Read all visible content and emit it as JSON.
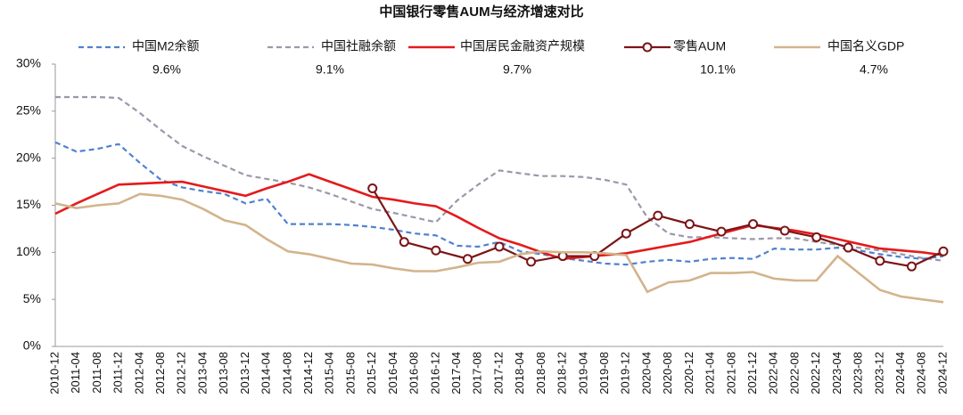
{
  "chart_data": {
    "type": "line",
    "title": "中国银行零售AUM与经济增速对比",
    "categories": [
      "2010-12",
      "2011-04",
      "2011-08",
      "2011-12",
      "2012-04",
      "2012-08",
      "2012-12",
      "2013-04",
      "2013-08",
      "2013-12",
      "2014-04",
      "2014-08",
      "2014-12",
      "2015-04",
      "2015-08",
      "2015-12",
      "2016-04",
      "2016-08",
      "2016-12",
      "2017-04",
      "2017-08",
      "2017-12",
      "2018-04",
      "2018-08",
      "2018-12",
      "2019-04",
      "2019-08",
      "2019-12",
      "2020-04",
      "2020-08",
      "2020-12",
      "2021-04",
      "2021-08",
      "2021-12",
      "2022-04",
      "2022-08",
      "2022-12",
      "2023-04",
      "2023-08",
      "2023-12",
      "2024-04",
      "2024-08",
      "2024-12"
    ],
    "ylim": [
      0,
      30
    ],
    "yticks": [
      {
        "value": 0,
        "label": "0%"
      },
      {
        "value": 5,
        "label": "5%"
      },
      {
        "value": 10,
        "label": "10%"
      },
      {
        "value": 15,
        "label": "15%"
      },
      {
        "value": 20,
        "label": "20%"
      },
      {
        "value": 25,
        "label": "25%"
      },
      {
        "value": 30,
        "label": "30%"
      }
    ],
    "series": [
      {
        "name": "中国M2余额",
        "legend_note": "9.6%",
        "color": "#4f81d0",
        "dash": true,
        "values": [
          21.7,
          20.7,
          21.0,
          21.5,
          19.5,
          17.7,
          16.9,
          16.5,
          16.2,
          15.2,
          15.7,
          13.0,
          13.0,
          13.0,
          12.9,
          12.7,
          12.4,
          12.0,
          11.8,
          10.7,
          10.6,
          11.1,
          10.1,
          9.8,
          9.4,
          9.1,
          8.8,
          8.7,
          9.0,
          9.2,
          9.0,
          9.3,
          9.4,
          9.3,
          10.4,
          10.3,
          10.3,
          10.5,
          10.2,
          9.8,
          9.5,
          9.3,
          9.6
        ]
      },
      {
        "name": "中国社融余额",
        "legend_note": "9.1%",
        "color": "#9a98aa",
        "dash": true,
        "values": [
          26.5,
          26.5,
          26.5,
          26.4,
          24.8,
          23.0,
          21.3,
          20.2,
          19.2,
          18.2,
          17.8,
          17.4,
          16.9,
          16.2,
          15.4,
          14.6,
          14.2,
          13.7,
          13.2,
          15.5,
          17.2,
          18.7,
          18.4,
          18.1,
          18.1,
          18.0,
          17.7,
          17.2,
          13.7,
          12.0,
          11.6,
          11.6,
          11.5,
          11.4,
          11.5,
          11.5,
          11.1,
          10.8,
          10.5,
          10.2,
          9.8,
          9.4,
          9.1
        ]
      },
      {
        "name": "中国居民金融资产规模",
        "legend_note": "9.7%",
        "color": "#e41a1c",
        "width": 2.6,
        "values": [
          14.1,
          15.2,
          16.2,
          17.2,
          17.3,
          17.4,
          17.5,
          17.0,
          16.5,
          16.0,
          16.8,
          17.5,
          18.3,
          17.5,
          16.7,
          15.9,
          15.6,
          15.2,
          14.9,
          13.8,
          12.6,
          11.5,
          10.8,
          10.0,
          9.3,
          9.5,
          9.7,
          9.9,
          10.3,
          10.7,
          11.1,
          11.7,
          12.3,
          12.9,
          12.6,
          12.3,
          11.9,
          11.4,
          10.9,
          10.4,
          10.2,
          10.0,
          9.7
        ]
      },
      {
        "name": "零售AUM",
        "legend_note": "10.1%",
        "color": "#7b1416",
        "markers": true,
        "x": [
          "2015-12",
          "2016-06",
          "2016-12",
          "2017-06",
          "2017-12",
          "2018-06",
          "2018-12",
          "2019-06",
          "2019-12",
          "2020-06",
          "2020-12",
          "2021-06",
          "2021-12",
          "2022-06",
          "2022-12",
          "2023-06",
          "2023-12",
          "2024-06",
          "2024-12"
        ],
        "values": [
          16.8,
          11.1,
          10.2,
          9.3,
          10.6,
          9.0,
          9.6,
          9.6,
          12.0,
          13.9,
          13.0,
          12.2,
          13.0,
          12.3,
          11.6,
          10.5,
          9.1,
          8.5,
          10.1
        ]
      },
      {
        "name": "中国名义GDP",
        "legend_note": "4.7%",
        "color": "#d2b48c",
        "width": 2.6,
        "values": [
          15.2,
          14.7,
          15.0,
          15.2,
          16.2,
          16.0,
          15.6,
          14.6,
          13.4,
          12.9,
          11.4,
          10.1,
          9.8,
          9.3,
          8.8,
          8.7,
          8.3,
          8.0,
          8.0,
          8.4,
          8.9,
          9.0,
          9.8,
          10.1,
          10.0,
          10.0,
          9.9,
          9.7,
          5.8,
          6.8,
          7.0,
          7.8,
          7.8,
          7.9,
          7.2,
          7.0,
          7.0,
          9.6,
          7.8,
          6.0,
          5.3,
          5.0,
          4.7
        ]
      }
    ]
  }
}
